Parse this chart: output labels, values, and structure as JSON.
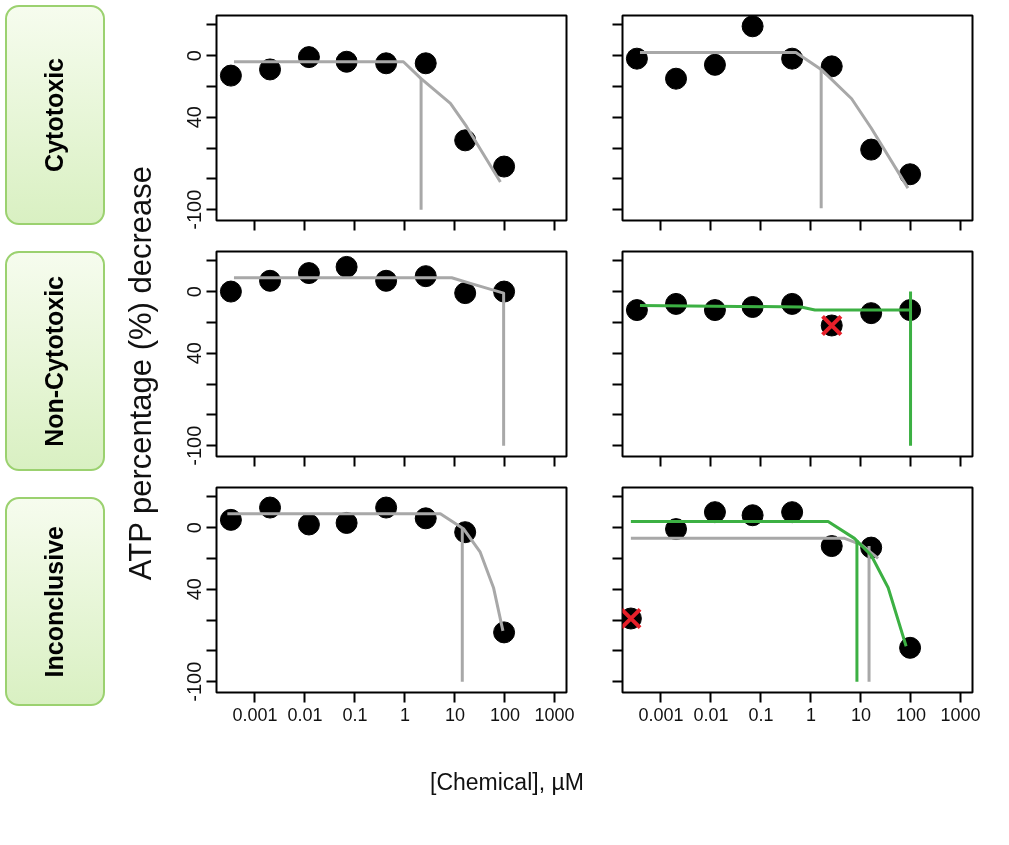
{
  "chart_data": [
    {
      "type": "scatter",
      "annotations": [
        "Cytotoxic"
      ],
      "log": "x",
      "xlim": [
        0.00017,
        1700
      ],
      "ylim": [
        -107,
        26
      ],
      "xticks": [
        0.001,
        0.01,
        0.1,
        1,
        10,
        100,
        1000
      ],
      "yticks": [
        {
          "value": 20,
          "label": null
        },
        0,
        {
          "value": -20,
          "label": null
        },
        {
          "value": -40,
          "label": "40"
        },
        {
          "value": -60,
          "label": null
        },
        {
          "value": -80,
          "label": null
        },
        -100
      ],
      "tick_labels": "y",
      "series": [
        {
          "marker": "circle",
          "color": "#000000",
          "x": [
            0.00033,
            0.002,
            0.012,
            0.068,
            0.42,
            2.6,
            16,
            96
          ],
          "values": [
            -13,
            -9,
            -1,
            -4,
            -5,
            -5,
            -55,
            -72
          ]
        },
        {
          "type": "line",
          "marker": "none",
          "color": "#a8a8a8",
          "x": [
            0.00038,
            0.93,
            2.1,
            8.1,
            17,
            81
          ],
          "values": [
            -4,
            -4,
            -15,
            -31,
            -46,
            -82
          ]
        },
        {
          "type": "line",
          "marker": "none",
          "color": "#a8a8a8",
          "x": [
            2.1,
            2.1
          ],
          "values": [
            -15,
            -100
          ]
        }
      ]
    },
    {
      "type": "scatter",
      "log": "x",
      "xlim": [
        0.00017,
        1700
      ],
      "ylim": [
        -107,
        26
      ],
      "xticks": [
        0.001,
        0.01,
        0.1,
        1,
        10,
        100,
        1000
      ],
      "yticks": [
        {
          "value": 20,
          "label": null
        },
        {
          "value": 0,
          "label": null
        },
        {
          "value": -20,
          "label": null
        },
        {
          "value": -40,
          "label": null
        },
        {
          "value": -60,
          "label": null
        },
        {
          "value": -80,
          "label": null
        },
        {
          "value": -100,
          "label": null
        }
      ],
      "tick_labels": false,
      "series": [
        {
          "marker": "circle",
          "color": "#000000",
          "x": [
            0.00033,
            0.002,
            0.012,
            0.068,
            0.42,
            2.6,
            16,
            96
          ],
          "values": [
            -2,
            -15,
            -6,
            19,
            -2,
            -7,
            -61,
            -77
          ]
        },
        {
          "type": "line",
          "marker": "none",
          "color": "#a8a8a8",
          "x": [
            0.00038,
            0.5,
            1.6,
            6.5,
            16,
            87
          ],
          "values": [
            2,
            2,
            -9,
            -28,
            -47,
            -86
          ]
        },
        {
          "type": "line",
          "marker": "none",
          "color": "#a8a8a8",
          "x": [
            1.6,
            1.6
          ],
          "values": [
            -9,
            -99
          ]
        }
      ]
    },
    {
      "type": "scatter",
      "annotations": [
        "Non-Cytotoxic"
      ],
      "ylabel": "ATP percentage (%) decrease",
      "log": "x",
      "xlim": [
        0.00017,
        1700
      ],
      "ylim": [
        -107,
        26
      ],
      "xticks": [
        0.001,
        0.01,
        0.1,
        1,
        10,
        100,
        1000
      ],
      "yticks": [
        {
          "value": 20,
          "label": null
        },
        0,
        {
          "value": -20,
          "label": null
        },
        {
          "value": -40,
          "label": "40"
        },
        {
          "value": -60,
          "label": null
        },
        {
          "value": -80,
          "label": null
        },
        -100
      ],
      "tick_labels": "y",
      "series": [
        {
          "marker": "circle",
          "color": "#000000",
          "x": [
            0.00033,
            0.002,
            0.012,
            0.068,
            0.42,
            2.6,
            16,
            96
          ],
          "values": [
            0,
            7,
            12,
            16,
            7,
            10,
            -1,
            0
          ]
        },
        {
          "type": "line",
          "marker": "none",
          "color": "#a8a8a8",
          "x": [
            0.00038,
            8.6,
            22,
            94,
            94
          ],
          "values": [
            9,
            9,
            5,
            -1,
            -100
          ]
        }
      ]
    },
    {
      "type": "scatter",
      "log": "x",
      "xlim": [
        0.00017,
        1700
      ],
      "ylim": [
        -107,
        26
      ],
      "xticks": [
        0.001,
        0.01,
        0.1,
        1,
        10,
        100,
        1000
      ],
      "yticks": [
        {
          "value": 20,
          "label": null
        },
        {
          "value": 0,
          "label": null
        },
        {
          "value": -20,
          "label": null
        },
        {
          "value": -40,
          "label": null
        },
        {
          "value": -60,
          "label": null
        },
        {
          "value": -80,
          "label": null
        },
        {
          "value": -100,
          "label": null
        }
      ],
      "tick_labels": false,
      "series": [
        {
          "marker": "circle",
          "color": "#000000",
          "x": [
            0.00033,
            0.002,
            0.012,
            0.068,
            0.42,
            2.6,
            16,
            96
          ],
          "values": [
            -12,
            -8,
            -12,
            -10,
            -8,
            -22,
            -14,
            -12
          ]
        },
        {
          "type": "line",
          "marker": "none",
          "color": "#3cb043",
          "x": [
            0.00038,
            0.63,
            1.2,
            98
          ],
          "values": [
            -9,
            -10,
            -12,
            -12
          ]
        },
        {
          "type": "line",
          "marker": "none",
          "color": "#3cb043",
          "x": [
            98,
            98
          ],
          "values": [
            0,
            -100
          ]
        },
        {
          "marker": "cross",
          "color": "#e8202a",
          "x": [
            2.6
          ],
          "values": [
            -22
          ]
        }
      ]
    },
    {
      "type": "scatter",
      "annotations": [
        "Inconclusive"
      ],
      "xlabel": "[Chemical], µM",
      "log": "x",
      "xlim": [
        0.00017,
        1700
      ],
      "ylim": [
        -107,
        26
      ],
      "xticks": [
        0.001,
        0.01,
        0.1,
        1,
        10,
        100,
        1000
      ],
      "yticks": [
        {
          "value": 20,
          "label": null
        },
        0,
        {
          "value": -20,
          "label": null
        },
        {
          "value": -40,
          "label": "40"
        },
        {
          "value": -60,
          "label": null
        },
        {
          "value": -80,
          "label": null
        },
        -100
      ],
      "series": [
        {
          "marker": "circle",
          "color": "#000000",
          "x": [
            0.00033,
            0.002,
            0.012,
            0.068,
            0.42,
            2.6,
            16,
            96
          ],
          "values": [
            5,
            13,
            2,
            3,
            13,
            6,
            -3,
            -68
          ]
        },
        {
          "type": "line",
          "marker": "none",
          "color": "#a8a8a8",
          "x": [
            0.00028,
            5.1,
            15,
            32,
            59,
            91
          ],
          "values": [
            9,
            9,
            -1,
            -16,
            -39,
            -67
          ]
        },
        {
          "type": "line",
          "marker": "none",
          "color": "#a8a8a8",
          "x": [
            14,
            14
          ],
          "values": [
            -1,
            -100
          ]
        }
      ]
    },
    {
      "type": "scatter",
      "log": "x",
      "xlim": [
        0.00017,
        1700
      ],
      "ylim": [
        -107,
        26
      ],
      "xticks": [
        0.001,
        0.01,
        0.1,
        1,
        10,
        100,
        1000
      ],
      "yticks": [
        {
          "value": 20,
          "label": null
        },
        {
          "value": 0,
          "label": null
        },
        {
          "value": -20,
          "label": null
        },
        {
          "value": -40,
          "label": null
        },
        {
          "value": -60,
          "label": null
        },
        {
          "value": -80,
          "label": null
        },
        {
          "value": -100,
          "label": null
        }
      ],
      "tick_labels": "x",
      "series": [
        {
          "marker": "circle",
          "color": "#000000",
          "x": [
            0.00025,
            0.002,
            0.012,
            0.068,
            0.42,
            2.6,
            16,
            96
          ],
          "values": [
            -59,
            -1,
            10,
            8,
            10,
            -12,
            -13,
            -78
          ]
        },
        {
          "type": "line",
          "marker": "none",
          "color": "#a8a8a8",
          "x": [
            0.00025,
            4.7,
            10,
            22
          ],
          "values": [
            -7,
            -7,
            -11,
            -20
          ]
        },
        {
          "type": "line",
          "marker": "none",
          "color": "#a8a8a8",
          "x": [
            14.5,
            14.5
          ],
          "values": [
            -12,
            -100
          ]
        },
        {
          "type": "line",
          "marker": "none",
          "color": "#3cb043",
          "x": [
            0.00025,
            2.2,
            7.4,
            16,
            35,
            80
          ],
          "values": [
            4,
            4,
            -7,
            -18,
            -39,
            -77
          ]
        },
        {
          "type": "line",
          "marker": "none",
          "color": "#3cb043",
          "x": [
            8.3,
            8.3
          ],
          "values": [
            -8,
            -100
          ]
        },
        {
          "marker": "cross",
          "color": "#e8202a",
          "x": [
            0.00025
          ],
          "values": [
            -59
          ]
        }
      ]
    }
  ]
}
